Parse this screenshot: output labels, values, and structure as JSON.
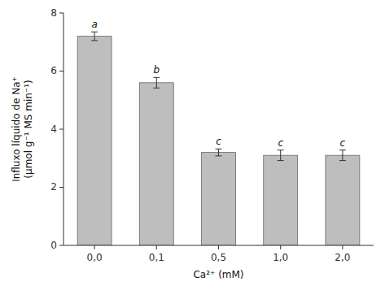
{
  "chart_data": {
    "type": "bar",
    "categories": [
      "0,0",
      "0,1",
      "0,5",
      "1,0",
      "2,0"
    ],
    "values": [
      7.2,
      5.6,
      3.2,
      3.1,
      3.1
    ],
    "errors": [
      0.15,
      0.18,
      0.12,
      0.18,
      0.18
    ],
    "annotations": [
      "a",
      "b",
      "c",
      "c",
      "c"
    ],
    "color": "#BEBEBE",
    "xlabel": "Ca²⁺ (mM)",
    "ylabel": "Influxo líquido de Na⁺\n(μmol g⁻¹ MS min⁻¹)",
    "ylim": [
      0,
      8
    ],
    "yticks": [
      0,
      2,
      4,
      6,
      8
    ],
    "grid": false
  }
}
